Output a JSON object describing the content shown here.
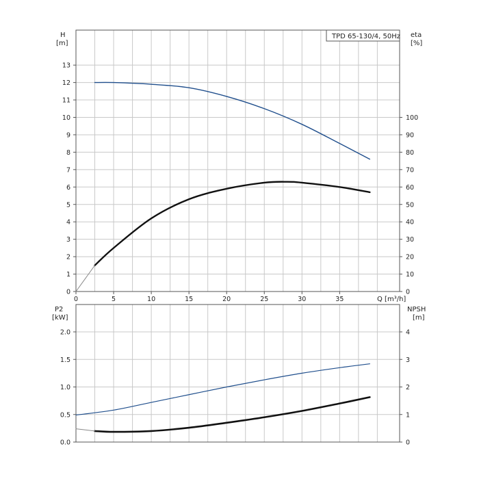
{
  "chart_data": [
    {
      "type": "line",
      "title": "TPD 65-130/4, 50Hz",
      "xlabel": "Q [m³/h]",
      "x_tick_labels": [
        "0",
        "5",
        "10",
        "15",
        "20",
        "25",
        "30",
        "35"
      ],
      "xlim": [
        0,
        42.5
      ],
      "left_axis": {
        "label_line1": "H",
        "label_line2": "[m]",
        "ylim": [
          0,
          15
        ],
        "tick_labels": [
          "0",
          "1",
          "2",
          "3",
          "4",
          "5",
          "6",
          "7",
          "8",
          "9",
          "10",
          "11",
          "12",
          "13"
        ]
      },
      "right_axis": {
        "label_line1": "eta",
        "label_line2": "[%]",
        "ylim": [
          0,
          150
        ],
        "tick_labels": [
          "0",
          "10",
          "20",
          "30",
          "40",
          "50",
          "60",
          "70",
          "80",
          "90",
          "100"
        ]
      },
      "grid": true,
      "series": [
        {
          "axis": "left",
          "color": "#1f4e8c",
          "points": [
            [
              2.5,
              12.0
            ],
            [
              5,
              12.0
            ],
            [
              10,
              11.9
            ],
            [
              15,
              11.7
            ],
            [
              20,
              11.2
            ],
            [
              25,
              10.5
            ],
            [
              30,
              9.6
            ],
            [
              35,
              8.5
            ],
            [
              39,
              7.6
            ]
          ]
        },
        {
          "axis": "right",
          "color": "#111111",
          "points": [
            [
              2.5,
              15
            ],
            [
              5,
              25
            ],
            [
              10,
              42
            ],
            [
              15,
              53
            ],
            [
              20,
              59
            ],
            [
              25,
              62.5
            ],
            [
              28,
              63
            ],
            [
              30,
              62.5
            ],
            [
              35,
              60
            ],
            [
              39,
              57
            ]
          ]
        },
        {
          "axis": "right",
          "color": "#888888",
          "points": [
            [
              0,
              0
            ],
            [
              2.5,
              15
            ]
          ]
        }
      ]
    },
    {
      "type": "line",
      "xlim": [
        0,
        42.5
      ],
      "left_axis": {
        "label_line1": "P2",
        "label_line2": "[kW]",
        "ylim": [
          0,
          2.5
        ],
        "tick_labels": [
          "0.0",
          "0.5",
          "1.0",
          "1.5",
          "2.0"
        ]
      },
      "right_axis": {
        "label_line1": "NPSH",
        "label_line2": "[m]",
        "ylim": [
          0,
          5
        ],
        "tick_labels": [
          "0",
          "1",
          "2",
          "3",
          "4"
        ]
      },
      "grid": true,
      "series": [
        {
          "axis": "left",
          "color": "#1f4e8c",
          "points": [
            [
              0,
              0.49
            ],
            [
              5,
              0.58
            ],
            [
              10,
              0.72
            ],
            [
              15,
              0.86
            ],
            [
              20,
              1.0
            ],
            [
              25,
              1.13
            ],
            [
              30,
              1.25
            ],
            [
              35,
              1.35
            ],
            [
              39,
              1.42
            ]
          ]
        },
        {
          "axis": "right",
          "color": "#111111",
          "points": [
            [
              2.5,
              0.4
            ],
            [
              5,
              0.37
            ],
            [
              10,
              0.4
            ],
            [
              15,
              0.52
            ],
            [
              20,
              0.7
            ],
            [
              25,
              0.9
            ],
            [
              30,
              1.13
            ],
            [
              35,
              1.4
            ],
            [
              39,
              1.63
            ]
          ]
        },
        {
          "axis": "right",
          "color": "#888888",
          "points": [
            [
              0,
              0.48
            ],
            [
              2.5,
              0.4
            ]
          ]
        }
      ]
    }
  ]
}
